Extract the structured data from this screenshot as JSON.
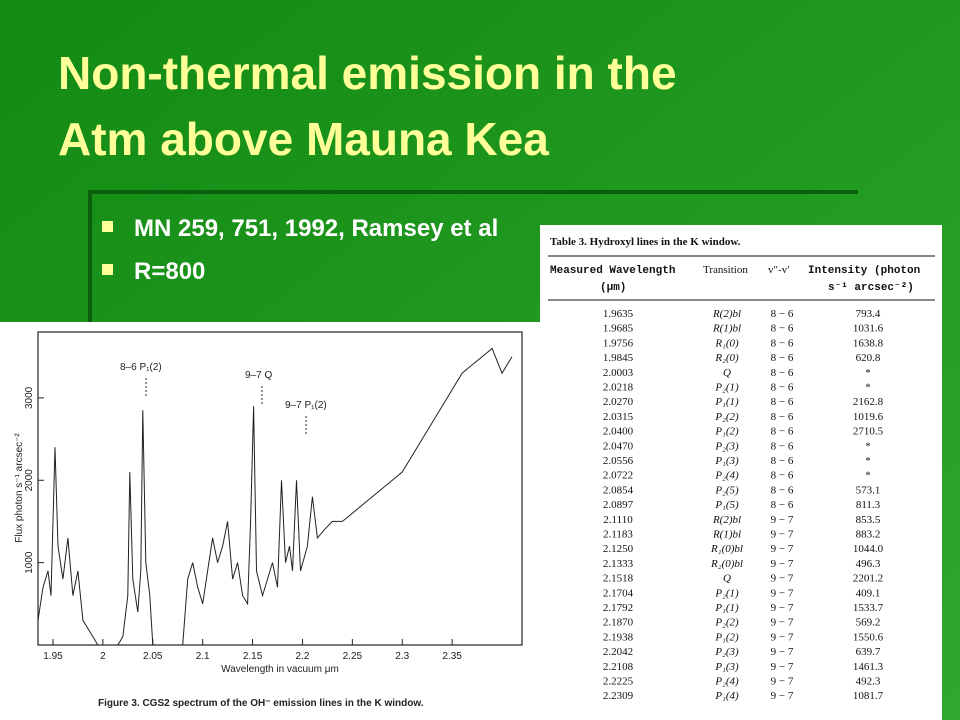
{
  "slide": {
    "title_lines": [
      "Non-thermal emission in the",
      "Atm  above Mauna Kea"
    ],
    "bullets": [
      "MN 259, 751, 1992, Ramsey et al",
      "R=800"
    ]
  },
  "figure": {
    "type": "line",
    "caption": "Figure 3.  CGS2 spectrum of the OH⁻ emission lines in the K window.",
    "x_label": "Wavelength in vacuum     μm",
    "y_label": "Flux    photon s⁻¹  arcsec⁻²",
    "annotations": [
      "8–6  P₁(2)",
      "9–7  Q",
      "9–7  P₁(2)"
    ],
    "xlim": [
      1.935,
      2.42
    ],
    "ylim": [
      0,
      3800
    ],
    "xticks": [
      1.95,
      2,
      2.05,
      2.1,
      2.15,
      2.2,
      2.25,
      2.3,
      2.35
    ],
    "yticks": [
      1000,
      2000,
      3000
    ],
    "color": "#222222",
    "x": [
      1.935,
      1.94,
      1.945,
      1.948,
      1.952,
      1.955,
      1.96,
      1.965,
      1.97,
      1.975,
      1.98,
      1.985,
      1.99,
      1.995,
      2.0,
      2.005,
      2.01,
      2.015,
      2.02,
      2.025,
      2.027,
      2.03,
      2.035,
      2.038,
      2.04,
      2.043,
      2.047,
      2.05,
      2.06,
      2.07,
      2.08,
      2.085,
      2.09,
      2.095,
      2.1,
      2.105,
      2.11,
      2.115,
      2.12,
      2.125,
      2.13,
      2.135,
      2.14,
      2.145,
      2.148,
      2.151,
      2.154,
      2.16,
      2.165,
      2.17,
      2.175,
      2.179,
      2.183,
      2.187,
      2.19,
      2.194,
      2.198,
      2.205,
      2.21,
      2.215,
      2.222,
      2.23,
      2.24,
      2.25,
      2.26,
      2.27,
      2.28,
      2.29,
      2.3,
      2.31,
      2.32,
      2.33,
      2.34,
      2.35,
      2.36,
      2.37,
      2.38,
      2.39,
      2.4,
      2.41
    ],
    "values": [
      300,
      700,
      900,
      600,
      2400,
      1200,
      800,
      1300,
      600,
      900,
      300,
      200,
      100,
      0,
      0,
      0,
      0,
      0,
      100,
      600,
      2100,
      800,
      400,
      900,
      2850,
      1000,
      600,
      0,
      0,
      0,
      0,
      800,
      1000,
      700,
      500,
      900,
      1300,
      1000,
      1200,
      1500,
      800,
      1000,
      600,
      500,
      1500,
      2900,
      900,
      600,
      800,
      1000,
      700,
      2000,
      1000,
      1200,
      900,
      2000,
      900,
      1200,
      1800,
      1300,
      1400,
      1500,
      1500,
      1600,
      1700,
      1800,
      1900,
      2000,
      2100,
      2300,
      2500,
      2700,
      2900,
      3100,
      3300,
      3400,
      3500,
      3600,
      3300,
      3500
    ]
  },
  "table": {
    "caption": "Table 3.  Hydroxyl lines in the K window.",
    "header": [
      [
        "Measured Wavelength",
        "(μm)"
      ],
      [
        "Transition"
      ],
      [
        "v″-v′"
      ],
      [
        "Intensity (photon",
        "s⁻¹ arcsec⁻²)"
      ]
    ],
    "rows": [
      [
        "1.9635",
        "R(2)bl",
        "8 − 6",
        "793.4"
      ],
      [
        "1.9685",
        "R(1)bl",
        "8 − 6",
        "1031.6"
      ],
      [
        "1.9756",
        "R₁(0)",
        "8 − 6",
        "1638.8"
      ],
      [
        "1.9845",
        "R₂(0)",
        "8 − 6",
        "620.8"
      ],
      [
        "2.0003",
        "Q",
        "8 − 6",
        "*"
      ],
      [
        "2.0218",
        "P₂(1)",
        "8 − 6",
        "*"
      ],
      [
        "2.0270",
        "P₁(1)",
        "8 − 6",
        "2162.8"
      ],
      [
        "2.0315",
        "P₂(2)",
        "8 − 6",
        "1019.6"
      ],
      [
        "2.0400",
        "P₁(2)",
        "8 − 6",
        "2710.5"
      ],
      [
        "2.0470",
        "P₂(3)",
        "8 − 6",
        "*"
      ],
      [
        "2.0556",
        "P₁(3)",
        "8 − 6",
        "*"
      ],
      [
        "2.0722",
        "P₂(4)",
        "8 − 6",
        "*"
      ],
      [
        "2.0854",
        "P₂(5)",
        "8 − 6",
        "573.1"
      ],
      [
        "2.0897",
        "P₁(5)",
        "8 − 6",
        "811.3"
      ],
      [
        "2.1110",
        "R(2)bl",
        "9 − 7",
        "853.5"
      ],
      [
        "2.1183",
        "R(1)bl",
        "9 − 7",
        "883.2"
      ],
      [
        "2.1250",
        "R₁(0)bl",
        "9 − 7",
        "1044.0"
      ],
      [
        "2.1333",
        "R₂(0)bl",
        "9 − 7",
        "496.3"
      ],
      [
        "2.1518",
        "Q",
        "9 − 7",
        "2201.2"
      ],
      [
        "2.1704",
        "P₂(1)",
        "9 − 7",
        "409.1"
      ],
      [
        "2.1792",
        "P₁(1)",
        "9 − 7",
        "1533.7"
      ],
      [
        "2.1870",
        "P₂(2)",
        "9 − 7",
        "569.2"
      ],
      [
        "2.1938",
        "P₁(2)",
        "9 − 7",
        "1550.6"
      ],
      [
        "2.2042",
        "P₂(3)",
        "9 − 7",
        "639.7"
      ],
      [
        "2.2108",
        "P₁(3)",
        "9 − 7",
        "1461.3"
      ],
      [
        "2.2225",
        "P₂(4)",
        "9 − 7",
        "492.3"
      ],
      [
        "2.2309",
        "P₁(4)",
        "9 − 7",
        "1081.7"
      ]
    ]
  }
}
